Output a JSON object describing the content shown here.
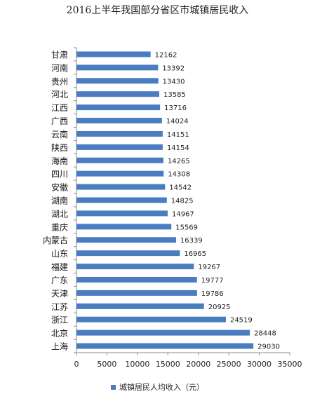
{
  "chart_data": {
    "type": "bar",
    "orientation": "horizontal",
    "title": "2016上半年我国部分省区市城镇居民收入",
    "categories": [
      "甘肃",
      "河南",
      "贵州",
      "河北",
      "江西",
      "广西",
      "云南",
      "陕西",
      "海南",
      "四川",
      "安徽",
      "湖南",
      "湖北",
      "重庆",
      "内蒙古",
      "山东",
      "福建",
      "广东",
      "天津",
      "江苏",
      "浙江",
      "北京",
      "上海"
    ],
    "series": [
      {
        "name": "城镇居民人均收入（元）",
        "values": [
          12162,
          13392,
          13430,
          13585,
          13716,
          14024,
          14151,
          14154,
          14265,
          14308,
          14542,
          14825,
          14967,
          15569,
          16339,
          16965,
          19267,
          19777,
          19786,
          20925,
          24519,
          28448,
          29030
        ]
      }
    ],
    "xlim": [
      0,
      35000
    ],
    "x_ticks": [
      0,
      5000,
      10000,
      15000,
      20000,
      25000,
      30000,
      35000
    ],
    "grid": false,
    "legend_position": "bottom",
    "bar_color": "#4a7cc0"
  }
}
